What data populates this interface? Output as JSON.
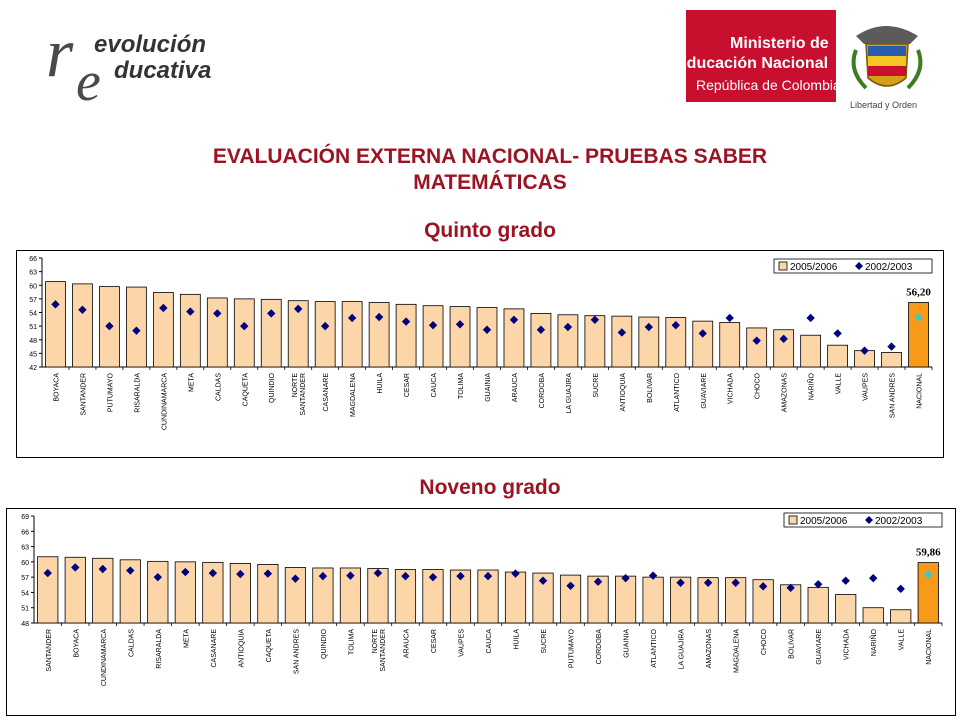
{
  "header": {
    "left_logo_text": {
      "line1": "evolución",
      "line2": "ducativa",
      "letter_r": "r",
      "letter_e": "e"
    },
    "right_logo": {
      "line1": "Ministerio de",
      "line2": "Educación Nacional",
      "line3": "República de Colombia",
      "motto": "Libertad y Orden"
    }
  },
  "titles": {
    "main_line1": "EVALUACIÓN EXTERNA NACIONAL- PRUEBAS SABER",
    "main_line2": "MATEMÁTICAS",
    "quinto": "Quinto grado",
    "noveno": "Noveno grado"
  },
  "colors": {
    "title": "#9b1424",
    "bar": "#fcd5a8",
    "bar_highlight": "#f79a1a",
    "diamond": "#00007f",
    "diamond_highlight": "#33cccc"
  },
  "chart_data": [
    {
      "type": "bar",
      "title": "Quinto grado",
      "categories": [
        "BOYACA",
        "SANTANDER",
        "PUTUMAYO",
        "RISARALDA",
        "CUNDINAMARCA",
        "META",
        "CALDAS",
        "CAQUETA",
        "QUINDIO",
        "NORTE SANTANDER",
        "CASANARE",
        "MAGDALENA",
        "HUILA",
        "CESAR",
        "CAUCA",
        "TOLIMA",
        "GUAINIA",
        "ARAUCA",
        "CORDOBA",
        "LA GUAJIRA",
        "SUCRE",
        "ANTIOQUIA",
        "BOLIVAR",
        "ATLANTICO",
        "GUAVIARE",
        "VICHADA",
        "CHOCO",
        "AMAZONAS",
        "NARIÑO",
        "VALLE",
        "VAUPES",
        "SAN ANDRES",
        "NACIONAL"
      ],
      "series": [
        {
          "name": "2005/2006",
          "values": [
            60.8,
            60.3,
            59.7,
            59.6,
            58.4,
            58.0,
            57.2,
            57.0,
            56.9,
            56.6,
            56.4,
            56.4,
            56.2,
            55.8,
            55.5,
            55.3,
            55.1,
            54.8,
            53.8,
            53.5,
            53.3,
            53.2,
            53.0,
            52.9,
            52.1,
            51.8,
            50.6,
            50.2,
            49.0,
            46.8,
            45.6,
            45.2,
            56.2
          ]
        },
        {
          "name": "2002/2003",
          "values": [
            55.8,
            54.6,
            51.0,
            50.0,
            55.0,
            54.2,
            53.8,
            51.0,
            53.8,
            54.8,
            51.0,
            52.8,
            53.0,
            52.0,
            51.2,
            51.4,
            50.2,
            52.4,
            50.2,
            50.8,
            52.4,
            49.6,
            50.8,
            51.2,
            49.4,
            52.8,
            47.8,
            48.2,
            52.8,
            49.4,
            45.6,
            46.5,
            52.9
          ]
        }
      ],
      "highlight": "NACIONAL",
      "data_label": "56,20",
      "ylim": [
        42,
        66
      ],
      "yticks": [
        "42",
        "45",
        "48",
        "51",
        "54",
        "57",
        "60",
        "63",
        "66"
      ],
      "legend": "top-right"
    },
    {
      "type": "bar",
      "title": "Noveno grado",
      "categories": [
        "SANTANDER",
        "BOYACA",
        "CUNDINAMARCA",
        "CALDAS",
        "RISARALDA",
        "META",
        "CASANARE",
        "ANTIOQUIA",
        "CAQUETA",
        "SAN ANDRES",
        "QUINDIO",
        "TOLIMA",
        "NORTE SANTANDER",
        "ARAUCA",
        "CESAR",
        "VAUPES",
        "CAUCA",
        "HUILA",
        "SUCRE",
        "PUTUMAYO",
        "CORDOBA",
        "GUAINIA",
        "ATLANTICO",
        "LA GUAJIRA",
        "AMAZONAS",
        "MAGDALENA",
        "CHOCO",
        "BOLIVAR",
        "GUAVIARE",
        "VICHADA",
        "NARIÑO",
        "VALLE",
        "NACIONAL"
      ],
      "series": [
        {
          "name": "2005/2006",
          "values": [
            61.0,
            60.9,
            60.7,
            60.4,
            60.1,
            60.0,
            59.9,
            59.7,
            59.5,
            58.9,
            58.8,
            58.8,
            58.7,
            58.5,
            58.5,
            58.4,
            58.4,
            58.0,
            57.8,
            57.4,
            57.2,
            57.2,
            57.0,
            57.0,
            56.9,
            56.9,
            56.5,
            55.5,
            55.0,
            53.6,
            51.0,
            50.6,
            59.86
          ]
        },
        {
          "name": "2002/2003",
          "values": [
            57.8,
            58.9,
            58.6,
            58.3,
            57.0,
            58.0,
            57.8,
            57.6,
            57.7,
            56.7,
            57.2,
            57.3,
            57.8,
            57.2,
            57.0,
            57.2,
            57.2,
            57.7,
            56.3,
            55.3,
            56.1,
            56.8,
            57.3,
            55.9,
            55.9,
            55.9,
            55.2,
            54.9,
            55.6,
            56.3,
            56.8,
            54.7,
            57.5
          ]
        }
      ],
      "highlight": "NACIONAL",
      "data_label": "59,86",
      "ylim": [
        48,
        69
      ],
      "yticks": [
        "48",
        "51",
        "54",
        "57",
        "60",
        "63",
        "66",
        "69"
      ],
      "legend": "top-right"
    }
  ]
}
